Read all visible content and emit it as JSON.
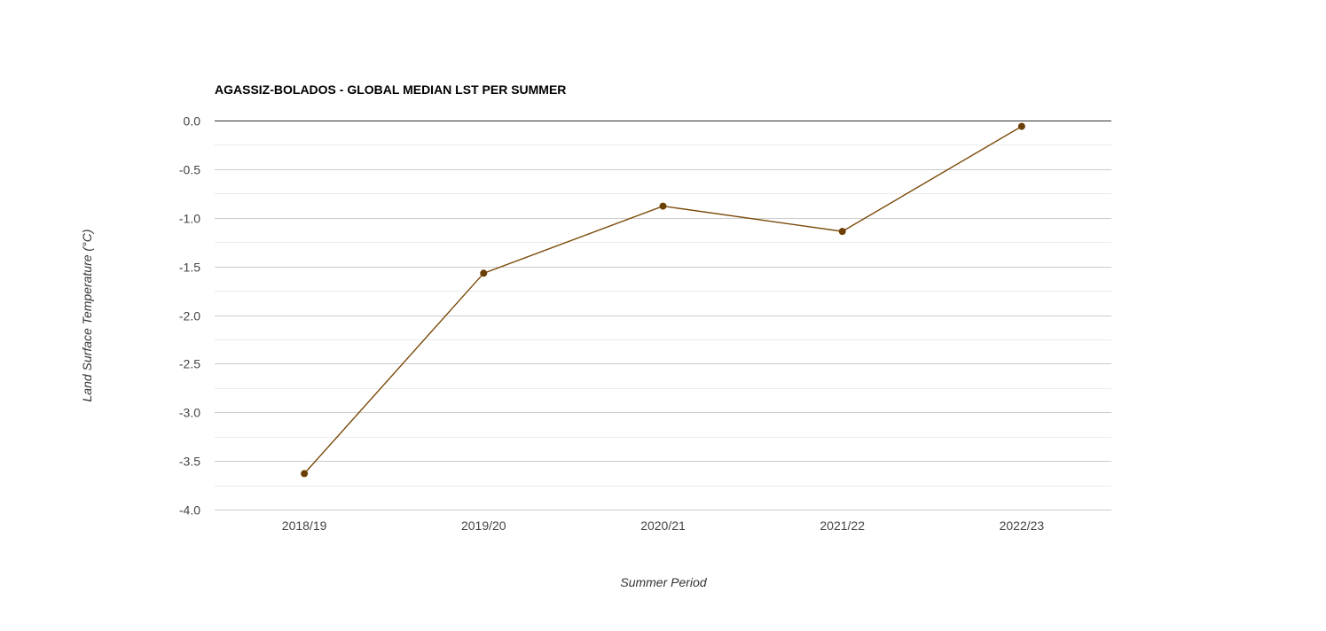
{
  "chart_data": {
    "type": "line",
    "title": "AGASSIZ-BOLADOS - GLOBAL MEDIAN LST PER SUMMER",
    "xlabel": "Summer Period",
    "ylabel": "Land Surface Temperature (°C)",
    "categories": [
      "2018/19",
      "2019/20",
      "2020/21",
      "2021/22",
      "2022/23"
    ],
    "series": [
      {
        "values": [
          -3.63,
          -1.57,
          -0.88,
          -1.14,
          -0.06
        ]
      }
    ],
    "ylim": [
      -4.0,
      0.0
    ],
    "yticks": [
      "0.0",
      "-0.5",
      "-1.0",
      "-1.5",
      "-2.0",
      "-2.5",
      "-3.0",
      "-3.5",
      "-4.0"
    ],
    "ytick_values": [
      0.0,
      -0.5,
      -1.0,
      -1.5,
      -2.0,
      -2.5,
      -3.0,
      -3.5,
      -4.0
    ],
    "grid": true,
    "minor_grid": true,
    "legend": "none",
    "colors": {
      "line": "#7a4a0a",
      "point": "#6b3f05",
      "grid": "#cccccc",
      "minor_grid": "#ebebeb",
      "zero_line": "#333333"
    }
  }
}
